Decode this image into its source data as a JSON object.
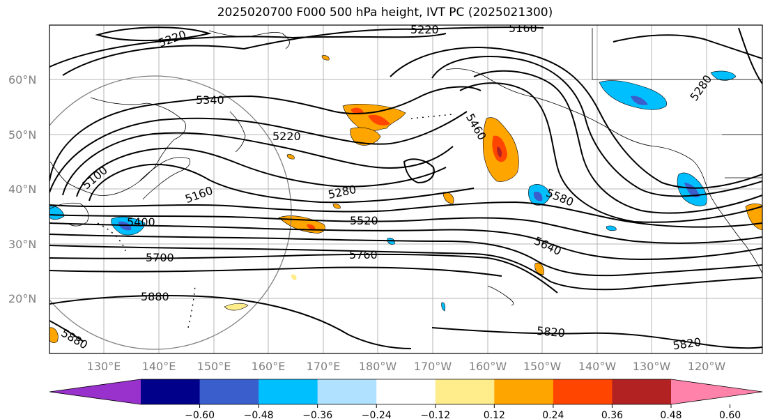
{
  "title": "2025020700 F000 500 hPa height, IVT PC (2025021300)",
  "lat_labels": [
    "60°N",
    "50°N",
    "40°N",
    "30°N",
    "20°N"
  ],
  "lon_labels": [
    "130°E",
    "140°E",
    "150°E",
    "160°E",
    "170°E",
    "180°W",
    "170°W",
    "160°W",
    "150°W",
    "140°W",
    "130°W",
    "120°W"
  ],
  "contour_labels": [
    "5220",
    "5220",
    "5160",
    "5280",
    "5340",
    "5220",
    "5460",
    "5100",
    "5160",
    "5280",
    "5400",
    "5580",
    "5520",
    "5700",
    "5760",
    "5640",
    "5880",
    "5820",
    "5880",
    "5820"
  ],
  "colorbar": {
    "ticks": [
      "−0.60",
      "−0.48",
      "−0.36",
      "−0.24",
      "−0.12",
      "0.12",
      "0.24",
      "0.36",
      "0.48",
      "0.60"
    ],
    "colors": [
      "#9932cc",
      "#00008b",
      "#3a5fcd",
      "#00bfff",
      "#b0e2ff",
      "#ffffff",
      "#ffec8b",
      "#ffa500",
      "#ff4500",
      "#b22222",
      "#ff82ab"
    ]
  }
}
